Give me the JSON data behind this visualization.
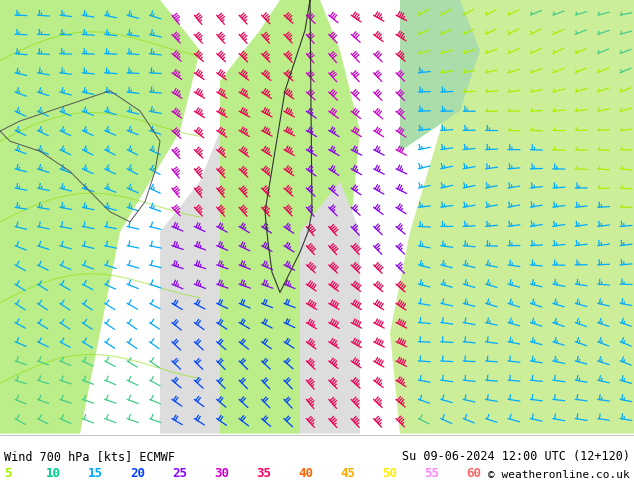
{
  "title_left": "Wind 700 hPa [kts] ECMWF",
  "title_right": "Su 09-06-2024 12:00 UTC (12+120)",
  "copyright": "© weatheronline.co.uk",
  "legend_entries": [
    {
      "label": "5",
      "color": "#aaee00"
    },
    {
      "label": "10",
      "color": "#00cc88"
    },
    {
      "label": "15",
      "color": "#00aaff"
    },
    {
      "label": "20",
      "color": "#0044ff"
    },
    {
      "label": "25",
      "color": "#8800ff"
    },
    {
      "label": "30",
      "color": "#cc00cc"
    },
    {
      "label": "35",
      "color": "#ff0066"
    },
    {
      "label": "40",
      "color": "#ff6600"
    },
    {
      "label": "45",
      "color": "#ffaa00"
    },
    {
      "label": "50",
      "color": "#ffee00"
    },
    {
      "label": "55",
      "color": "#ff88ff"
    },
    {
      "label": "60",
      "color": "#ff6666"
    }
  ],
  "map_bg_land": "#bbee88",
  "map_bg_sea": "#cccccc",
  "map_bg_land2": "#ddeebb",
  "bottom_bg": "#ffffff",
  "title_color": "#000000",
  "figsize": [
    6.34,
    4.9
  ],
  "dpi": 100
}
